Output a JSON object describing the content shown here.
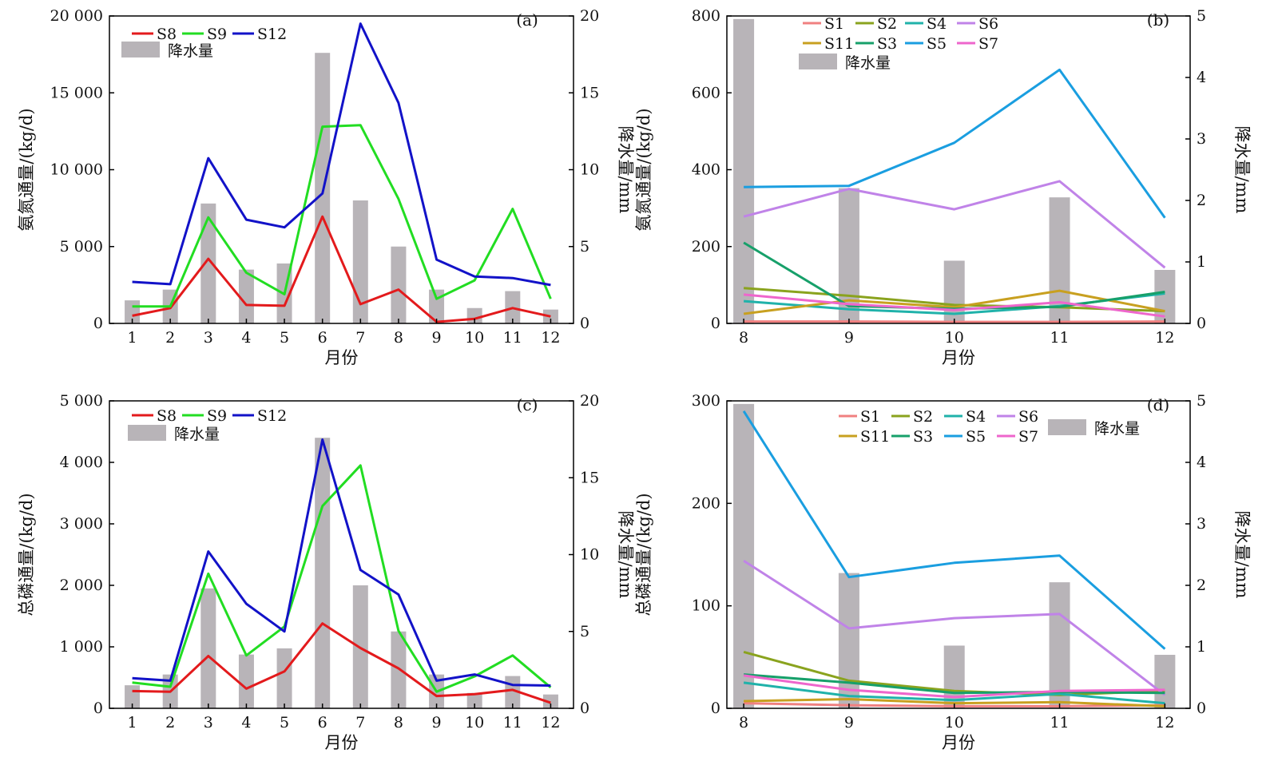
{
  "figure": {
    "precip_legend": "降水量"
  },
  "chart_data": [
    {
      "id": "a",
      "type": "line",
      "panel_label": "(a)",
      "xlabel": "月份",
      "ylabel": "氨氮通量/(kg/d)",
      "y2label": "降水量/mm",
      "x": [
        1,
        2,
        3,
        4,
        5,
        6,
        7,
        8,
        9,
        10,
        11,
        12
      ],
      "xticks": [
        "1",
        "2",
        "3",
        "4",
        "5",
        "6",
        "7",
        "8",
        "9",
        "10",
        "11",
        "12"
      ],
      "ylim": [
        0,
        20000
      ],
      "yticks": [
        0,
        5000,
        10000,
        15000,
        20000
      ],
      "yticklabels": [
        "0",
        "5 000",
        "10 000",
        "15 000",
        "20 000"
      ],
      "y2lim": [
        0,
        20
      ],
      "y2ticks": [
        0,
        5,
        10,
        15,
        20
      ],
      "y2ticklabels": [
        "0",
        "5",
        "10",
        "15",
        "20"
      ],
      "legend_columns": 3,
      "legend_position": "top-left",
      "series": [
        {
          "name": "S8",
          "color": "#e31a1c",
          "values": [
            500,
            1000,
            4200,
            1200,
            1150,
            6950,
            1250,
            2200,
            100,
            300,
            1000,
            450
          ]
        },
        {
          "name": "S9",
          "color": "#22dd22",
          "values": [
            1100,
            1100,
            6900,
            3300,
            1900,
            12800,
            12900,
            8100,
            1600,
            2800,
            7450,
            1600
          ]
        },
        {
          "name": "S12",
          "color": "#1212c8",
          "values": [
            2700,
            2550,
            10750,
            6750,
            6250,
            8450,
            19500,
            14350,
            4150,
            3050,
            2950,
            2500
          ]
        }
      ],
      "precipitation": {
        "name": "降水量",
        "color": "#b8b4b8",
        "values": [
          1.5,
          2.2,
          7.8,
          3.5,
          3.9,
          17.6,
          8.0,
          5.0,
          2.2,
          1.0,
          2.1,
          0.9
        ]
      }
    },
    {
      "id": "b",
      "type": "line",
      "panel_label": "(b)",
      "xlabel": "月份",
      "ylabel": "氨氮通量/(kg/d)",
      "y2label": "降水量/mm",
      "x": [
        8,
        9,
        10,
        11,
        12
      ],
      "xticks": [
        "8",
        "9",
        "10",
        "11",
        "12"
      ],
      "ylim": [
        0,
        800
      ],
      "yticks": [
        0,
        200,
        400,
        600,
        800
      ],
      "yticklabels": [
        "0",
        "200",
        "400",
        "600",
        "800"
      ],
      "y2lim": [
        0,
        5
      ],
      "y2ticks": [
        0,
        1,
        2,
        3,
        4,
        5
      ],
      "y2ticklabels": [
        "0",
        "1",
        "2",
        "3",
        "4",
        "5"
      ],
      "legend_columns": 4,
      "legend_position": "top-left",
      "series": [
        {
          "name": "S1",
          "color": "#f08080",
          "values": [
            5,
            5,
            4,
            4,
            5
          ]
        },
        {
          "name": "S2",
          "color": "#8aa31e",
          "values": [
            92,
            72,
            48,
            42,
            32
          ]
        },
        {
          "name": "S4",
          "color": "#20b2aa",
          "values": [
            58,
            37,
            25,
            45,
            78
          ]
        },
        {
          "name": "S6",
          "color": "#c083e8",
          "values": [
            278,
            350,
            297,
            370,
            145
          ]
        },
        {
          "name": "S11",
          "color": "#c8a020",
          "values": [
            25,
            60,
            42,
            85,
            32
          ]
        },
        {
          "name": "S3",
          "color": "#17a06a",
          "values": [
            210,
            45,
            38,
            43,
            82
          ]
        },
        {
          "name": "S5",
          "color": "#1a9ee0",
          "values": [
            355,
            358,
            470,
            660,
            275
          ]
        },
        {
          "name": "S7",
          "color": "#ee66cc",
          "values": [
            75,
            50,
            35,
            55,
            18
          ]
        }
      ],
      "precipitation": {
        "name": "降水量",
        "color": "#b8b4b8",
        "values": [
          4.95,
          2.2,
          1.02,
          2.05,
          0.87
        ]
      }
    },
    {
      "id": "c",
      "type": "line",
      "panel_label": "(c)",
      "xlabel": "月份",
      "ylabel": "总磷通量/(kg/d)",
      "y2label": "降水量/mm",
      "x": [
        1,
        2,
        3,
        4,
        5,
        6,
        7,
        8,
        9,
        10,
        11,
        12
      ],
      "xticks": [
        "1",
        "2",
        "3",
        "4",
        "5",
        "6",
        "7",
        "8",
        "9",
        "10",
        "11",
        "12"
      ],
      "ylim": [
        0,
        5000
      ],
      "yticks": [
        0,
        1000,
        2000,
        3000,
        4000,
        5000
      ],
      "yticklabels": [
        "0",
        "1 000",
        "2 000",
        "3 000",
        "4 000",
        "5 000"
      ],
      "y2lim": [
        0,
        20
      ],
      "y2ticks": [
        0,
        5,
        10,
        15,
        20
      ],
      "y2ticklabels": [
        "0",
        "5",
        "10",
        "15",
        "20"
      ],
      "legend_columns": 3,
      "legend_position": "top-left",
      "series": [
        {
          "name": "S8",
          "color": "#e31a1c",
          "values": [
            280,
            270,
            850,
            320,
            600,
            1380,
            980,
            650,
            200,
            230,
            300,
            90
          ]
        },
        {
          "name": "S9",
          "color": "#22dd22",
          "values": [
            420,
            350,
            2190,
            860,
            1330,
            3290,
            3950,
            1260,
            270,
            520,
            860,
            340
          ]
        },
        {
          "name": "S12",
          "color": "#1212c8",
          "values": [
            490,
            450,
            2550,
            1700,
            1250,
            4370,
            2250,
            1850,
            450,
            550,
            380,
            370
          ]
        }
      ],
      "precipitation": {
        "name": "降水量",
        "color": "#b8b4b8",
        "values": [
          1.5,
          2.2,
          7.8,
          3.5,
          3.9,
          17.6,
          8.0,
          5.0,
          2.2,
          1.0,
          2.1,
          0.9
        ]
      }
    },
    {
      "id": "d",
      "type": "line",
      "panel_label": "(d)",
      "xlabel": "月份",
      "ylabel": "总磷通量/(kg/d)",
      "y2label": "降水量/mm",
      "x": [
        8,
        9,
        10,
        11,
        12
      ],
      "xticks": [
        "8",
        "9",
        "10",
        "11",
        "12"
      ],
      "ylim": [
        0,
        300
      ],
      "yticks": [
        0,
        100,
        200,
        300
      ],
      "yticklabels": [
        "0",
        "100",
        "200",
        "300"
      ],
      "y2lim": [
        0,
        5
      ],
      "y2ticks": [
        0,
        1,
        2,
        3,
        4,
        5
      ],
      "y2ticklabels": [
        "0",
        "1",
        "2",
        "3",
        "4",
        "5"
      ],
      "legend_columns": 4,
      "legend_position": "top-center",
      "series": [
        {
          "name": "S1",
          "color": "#f08080",
          "values": [
            5,
            3,
            2,
            2,
            3
          ]
        },
        {
          "name": "S2",
          "color": "#8aa31e",
          "values": [
            55,
            27,
            17,
            13,
            17
          ]
        },
        {
          "name": "S4",
          "color": "#20b2aa",
          "values": [
            25,
            12,
            8,
            14,
            5
          ]
        },
        {
          "name": "S6",
          "color": "#c083e8",
          "values": [
            144,
            78,
            88,
            92,
            13
          ]
        },
        {
          "name": "S11",
          "color": "#c8a020",
          "values": [
            7,
            9,
            5,
            6,
            2
          ]
        },
        {
          "name": "S3",
          "color": "#17a06a",
          "values": [
            33,
            25,
            15,
            16,
            15
          ]
        },
        {
          "name": "S5",
          "color": "#1a9ee0",
          "values": [
            290,
            128,
            142,
            149,
            58
          ]
        },
        {
          "name": "S7",
          "color": "#ee66cc",
          "values": [
            32,
            18,
            11,
            17,
            18
          ]
        }
      ],
      "precipitation": {
        "name": "降水量",
        "color": "#b8b4b8",
        "values": [
          4.95,
          2.2,
          1.02,
          2.05,
          0.87
        ]
      }
    }
  ]
}
